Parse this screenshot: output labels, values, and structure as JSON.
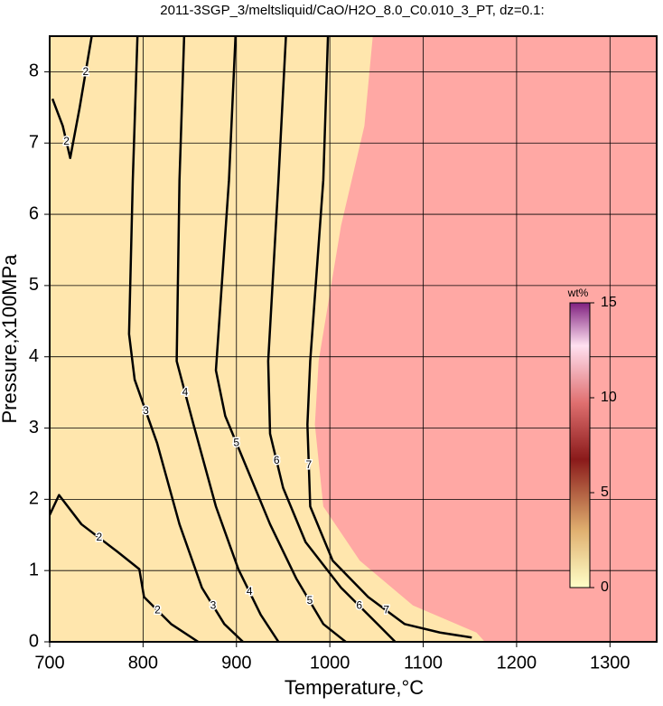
{
  "chart_data": {
    "type": "contour",
    "title": "2011-3SGP_3/meltsliquid/CaO/H2O_8.0_C0.010_3_PT, dz=0.1:",
    "x_label": "Temperature,°C",
    "y_label": "Pressure,x100MPa",
    "xlim": [
      700,
      1350
    ],
    "xticks": [
      700,
      800,
      900,
      1000,
      1100,
      1200,
      1300
    ],
    "ylim": [
      0,
      8.5
    ],
    "yticks": [
      0,
      1,
      2,
      3,
      4,
      5,
      6,
      7,
      8
    ],
    "grid": true,
    "background": "#ffe6ad",
    "regions": [
      {
        "color": "#ffa8a4",
        "x": [
          1046,
          1037,
          1012,
          988,
          984,
          993,
          1032,
          1089,
          1157,
          1166
        ],
        "y": [
          8.5,
          7.24,
          5.84,
          3.94,
          3.05,
          1.9,
          1.14,
          0.51,
          0.13,
          0
        ]
      }
    ],
    "contours": [
      {
        "level": 2,
        "x": [
          703,
          714,
          722,
          732,
          745
        ],
        "y": [
          7.62,
          7.24,
          6.79,
          7.49,
          8.5
        ]
      },
      {
        "level": 2,
        "x": [
          700,
          710,
          734,
          772,
          796,
          801,
          830,
          859
        ],
        "y": [
          1.78,
          2.06,
          1.65,
          1.27,
          1.02,
          0.63,
          0.25,
          0
        ]
      },
      {
        "level": 3,
        "x": [
          794,
          789,
          785,
          791,
          815,
          839,
          863,
          887,
          907
        ],
        "y": [
          8.5,
          6.48,
          4.32,
          3.68,
          2.79,
          1.65,
          0.76,
          0.25,
          0
        ]
      },
      {
        "level": 4,
        "x": [
          844,
          839,
          836,
          854,
          878,
          902,
          926,
          945
        ],
        "y": [
          8.5,
          6.48,
          3.94,
          3.05,
          1.9,
          1.02,
          0.38,
          0
        ]
      },
      {
        "level": 5,
        "x": [
          899,
          892,
          878,
          888,
          912,
          936,
          964,
          993,
          1017
        ],
        "y": [
          8.5,
          6.48,
          3.81,
          3.17,
          2.41,
          1.65,
          0.89,
          0.25,
          0
        ]
      },
      {
        "level": 6,
        "x": [
          953,
          945,
          934,
          936,
          950,
          974,
          1012,
          1051,
          1070
        ],
        "y": [
          8.5,
          6.48,
          3.94,
          2.92,
          2.16,
          1.4,
          0.76,
          0.25,
          0
        ]
      },
      {
        "level": 7,
        "x": [
          998,
          993,
          979,
          976,
          979,
          1003,
          1041,
          1080,
          1118,
          1152
        ],
        "y": [
          8.5,
          6.48,
          3.94,
          3.05,
          1.9,
          1.14,
          0.63,
          0.25,
          0.13,
          0.06
        ]
      }
    ],
    "colorbar": {
      "label": "wt%",
      "lim": [
        0,
        15
      ],
      "ticks": [
        0,
        5,
        10,
        15
      ]
    }
  }
}
